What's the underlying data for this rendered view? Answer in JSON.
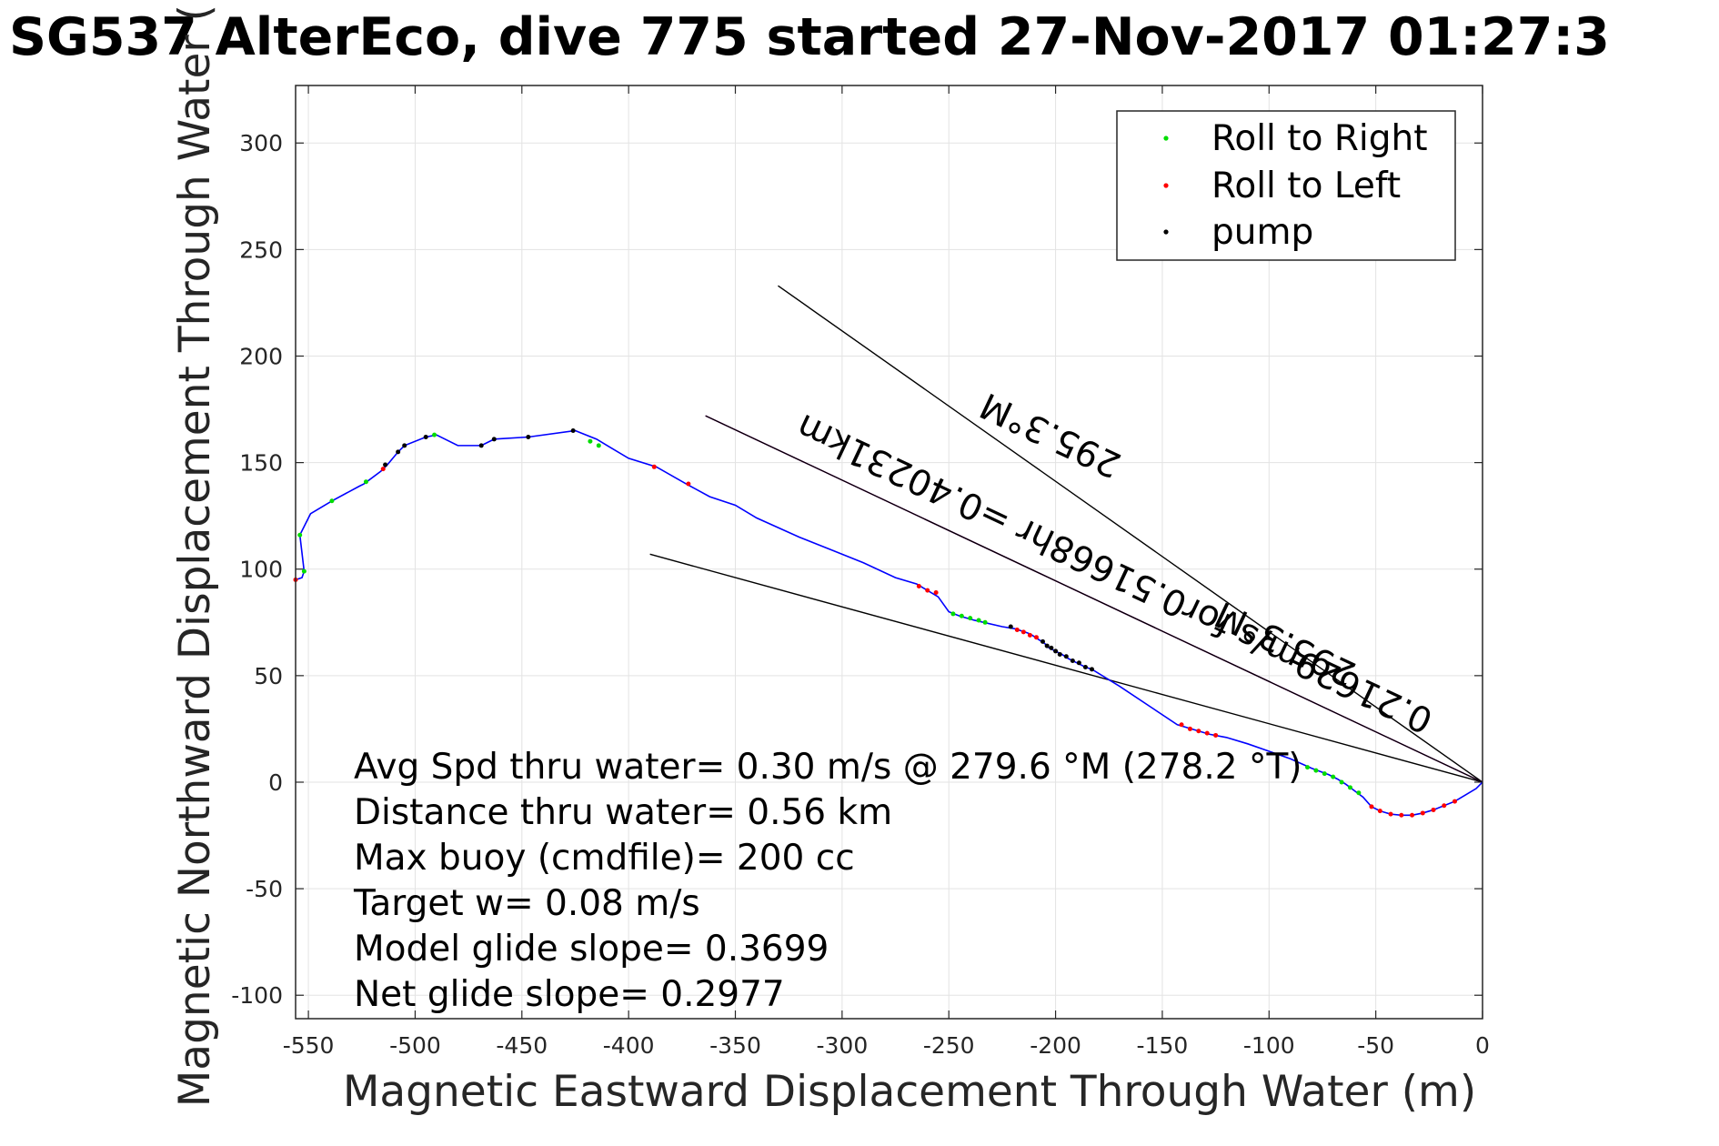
{
  "chart_data": {
    "type": "line",
    "title": "SG537 AlterEco, dive 775 started 27-Nov-2017 01:27:3",
    "xlabel": "Magnetic Eastward Displacement Through Water (m)",
    "ylabel": "Magnetic Northward Displacement Through Water (",
    "xlim": [
      -556,
      0
    ],
    "ylim": [
      -111,
      327
    ],
    "xticks": [
      -550,
      -500,
      -450,
      -400,
      -350,
      -300,
      -250,
      -200,
      -150,
      -100,
      -50,
      0
    ],
    "yticks": [
      -100,
      -50,
      0,
      50,
      100,
      150,
      200,
      250,
      300
    ],
    "grid": true,
    "legend": {
      "placement": "top-right",
      "entries": [
        {
          "label": "Roll to Right",
          "color": "#00dd00"
        },
        {
          "label": "Roll to Left",
          "color": "#ff0000"
        },
        {
          "label": "pump",
          "color": "#000000"
        }
      ]
    },
    "track": {
      "name": "track",
      "color": "#0000ff",
      "points": [
        [
          0,
          0
        ],
        [
          -3,
          -3
        ],
        [
          -8,
          -6
        ],
        [
          -13,
          -9
        ],
        [
          -18,
          -11
        ],
        [
          -23,
          -13
        ],
        [
          -28,
          -14.5
        ],
        [
          -33,
          -15.5
        ],
        [
          -38,
          -15.5
        ],
        [
          -43,
          -15
        ],
        [
          -48,
          -13.5
        ],
        [
          -52,
          -11.5
        ],
        [
          -56,
          -7
        ],
        [
          -60,
          -4
        ],
        [
          -64,
          -1
        ],
        [
          -68,
          1.5
        ],
        [
          -72,
          3.5
        ],
        [
          -76,
          5
        ],
        [
          -80,
          6.5
        ],
        [
          -90,
          11
        ],
        [
          -100,
          14.5
        ],
        [
          -110,
          18
        ],
        [
          -120,
          21
        ],
        [
          -128,
          22.5
        ],
        [
          -133,
          24
        ],
        [
          -138,
          25.5
        ],
        [
          -143,
          27
        ],
        [
          -155,
          35
        ],
        [
          -170,
          45
        ],
        [
          -183,
          53
        ],
        [
          -186,
          54
        ],
        [
          -190,
          56
        ],
        [
          -194,
          58
        ],
        [
          -197,
          60
        ],
        [
          -200,
          61.5
        ],
        [
          -203,
          63
        ],
        [
          -205,
          65
        ],
        [
          -208,
          67
        ],
        [
          -211,
          69
        ],
        [
          -213,
          70
        ],
        [
          -216,
          71
        ],
        [
          -219,
          72
        ],
        [
          -225,
          73
        ],
        [
          -238,
          76
        ],
        [
          -245,
          78
        ],
        [
          -250,
          80
        ],
        [
          -255,
          87
        ],
        [
          -260,
          90
        ],
        [
          -265,
          93
        ],
        [
          -275,
          96
        ],
        [
          -290,
          103
        ],
        [
          -305,
          109
        ],
        [
          -320,
          115
        ],
        [
          -340,
          124
        ],
        [
          -350,
          130
        ],
        [
          -362,
          134
        ],
        [
          -373,
          140
        ],
        [
          -387,
          148
        ],
        [
          -400,
          152
        ],
        [
          -410,
          158
        ],
        [
          -415,
          161
        ],
        [
          -425,
          165
        ],
        [
          -447,
          162
        ],
        [
          -463,
          161
        ],
        [
          -469,
          158
        ],
        [
          -480,
          158
        ],
        [
          -490,
          163
        ],
        [
          -495,
          162
        ],
        [
          -505,
          158
        ],
        [
          -508,
          155
        ],
        [
          -513,
          149
        ],
        [
          -516,
          146
        ],
        [
          -524,
          140
        ],
        [
          -526,
          139
        ],
        [
          -539,
          132
        ],
        [
          -549,
          126
        ],
        [
          -554,
          116
        ],
        [
          -552,
          99
        ],
        [
          -553,
          96
        ],
        [
          -556,
          95
        ]
      ]
    },
    "roll_right_points": [
      [
        -58,
        -5
      ],
      [
        -62,
        -2.5
      ],
      [
        -66,
        0
      ],
      [
        -70,
        2.5
      ],
      [
        -74,
        4
      ],
      [
        -78,
        5.5
      ],
      [
        -82,
        7
      ],
      [
        -233,
        75
      ],
      [
        -236,
        76
      ],
      [
        -240,
        77
      ],
      [
        -244,
        78
      ],
      [
        -248,
        79
      ],
      [
        -414,
        158
      ],
      [
        -418,
        160
      ],
      [
        -491,
        163
      ],
      [
        -523,
        141
      ],
      [
        -539,
        132
      ],
      [
        -554,
        116
      ],
      [
        -552,
        99
      ]
    ],
    "roll_left_points": [
      [
        -13,
        -9
      ],
      [
        -18,
        -11
      ],
      [
        -23,
        -13
      ],
      [
        -28,
        -14.5
      ],
      [
        -33,
        -15.5
      ],
      [
        -38,
        -15.5
      ],
      [
        -43,
        -15
      ],
      [
        -48,
        -13.5
      ],
      [
        -52,
        -11.5
      ],
      [
        -125,
        22
      ],
      [
        -129,
        23
      ],
      [
        -133,
        24
      ],
      [
        -137,
        25
      ],
      [
        -141,
        27
      ],
      [
        -209,
        68
      ],
      [
        -212,
        69
      ],
      [
        -215,
        70.5
      ],
      [
        -218,
        71.5
      ],
      [
        -256,
        89
      ],
      [
        -260,
        90
      ],
      [
        -264,
        92
      ],
      [
        -372,
        140
      ],
      [
        -388,
        148
      ],
      [
        -515,
        147
      ],
      [
        -556,
        95
      ]
    ],
    "pump_points": [
      [
        -183,
        53
      ],
      [
        -186,
        54
      ],
      [
        -189,
        56
      ],
      [
        -192,
        57
      ],
      [
        -195,
        59
      ],
      [
        -198,
        60
      ],
      [
        -200,
        61.5
      ],
      [
        -202,
        63
      ],
      [
        -204,
        64
      ],
      [
        -206,
        66
      ],
      [
        -221,
        73
      ],
      [
        -426,
        165
      ],
      [
        -447,
        162
      ],
      [
        -463,
        161
      ],
      [
        -469,
        158
      ],
      [
        -495,
        162
      ],
      [
        -505,
        158
      ],
      [
        -508,
        155
      ],
      [
        -514,
        149
      ]
    ],
    "lines": [
      {
        "color": "#000000",
        "from": [
          0,
          0
        ],
        "to": [
          -330,
          233
        ]
      },
      {
        "color": "#000000",
        "from": [
          0,
          0
        ],
        "to": [
          -390,
          107
        ]
      },
      {
        "color": "#ff00ff",
        "from": [
          0,
          0
        ],
        "to": [
          -364,
          172
        ]
      },
      {
        "color": "#000000",
        "from": [
          0,
          0
        ],
        "to": [
          -364,
          172
        ]
      }
    ],
    "rotated_labels": [
      {
        "text": "295.3°M",
        "anchor": [
          -90,
          70
        ],
        "angle": 25.3
      },
      {
        "text": "0.21629m/s for0.51668hr =0.40231km",
        "anchor": [
          -170,
          103
        ],
        "angle": 25.3
      },
      {
        "text": "295.3°M",
        "anchor": [
          -200,
          168
        ],
        "angle": 25.3
      }
    ],
    "annotations": [
      "Avg Spd thru water=  0.30 m/s @ 279.6 °M (278.2 °T)",
      "Distance thru water=  0.56 km",
      "Max buoy (cmdfile)= 200 cc",
      "Target w= 0.08 m/s",
      "Model glide slope= 0.3699",
      "Net glide slope= 0.2977"
    ]
  }
}
